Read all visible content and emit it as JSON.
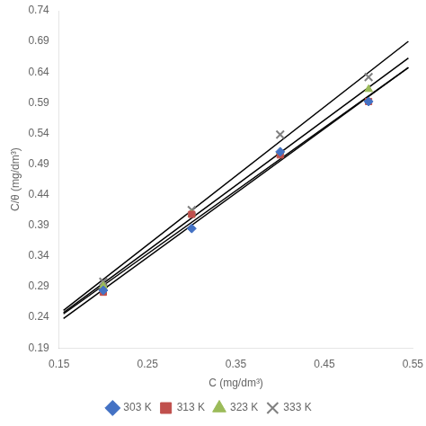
{
  "chart_data": {
    "type": "scatter",
    "xlabel": "C (mg/dm³)",
    "ylabel": "C/θ (mg/dm³)",
    "xlim": [
      0.15,
      0.55
    ],
    "ylim": [
      0.19,
      0.74
    ],
    "xticks": [
      0.15,
      0.25,
      0.35,
      0.45,
      0.55
    ],
    "yticks": [
      0.19,
      0.24,
      0.29,
      0.34,
      0.39,
      0.44,
      0.49,
      0.54,
      0.59,
      0.64,
      0.69,
      0.74
    ],
    "grid": false,
    "legend": "bottom",
    "series": [
      {
        "type": "line",
        "color": "black",
        "line_style": "solid",
        "x": [
          0.155,
          0.545
        ],
        "values": [
          0.238195,
          0.647305
        ]
      },
      {
        "type": "line",
        "color": "black",
        "line_style": "solid",
        "x": [
          0.155,
          0.545
        ],
        "values": [
          0.24565,
          0.64735
        ]
      },
      {
        "type": "line",
        "color": "black",
        "line_style": "solid",
        "x": [
          0.155,
          0.545
        ],
        "values": [
          0.247575,
          0.662925
        ]
      },
      {
        "type": "line",
        "color": "black",
        "line_style": "solid",
        "x": [
          0.155,
          0.545
        ],
        "values": [
          0.251375,
          0.690125
        ]
      },
      {
        "name": "303 K",
        "type": "scatter",
        "color": "#4472c4",
        "marker": "diamond",
        "x": [
          0.2,
          0.3,
          0.4,
          0.5
        ],
        "values": [
          0.284,
          0.385,
          0.51,
          0.592
        ]
      },
      {
        "name": "313 K",
        "type": "scatter",
        "color": "#c0504d",
        "marker": "square",
        "x": [
          0.2,
          0.3,
          0.4,
          0.5
        ],
        "values": [
          0.281,
          0.408,
          0.505,
          0.592
        ]
      },
      {
        "name": "323 K",
        "type": "scatter",
        "color": "#9bbb59",
        "marker": "triangle",
        "x": [
          0.2,
          0.3,
          0.4,
          0.5
        ],
        "values": [
          0.291,
          0.408,
          0.51,
          0.612
        ]
      },
      {
        "name": "333 K",
        "type": "scatter",
        "color": "#808080",
        "marker": "x",
        "x": [
          0.2,
          0.3,
          0.4,
          0.5
        ],
        "values": [
          0.298,
          0.415,
          0.538,
          0.632
        ]
      }
    ]
  }
}
